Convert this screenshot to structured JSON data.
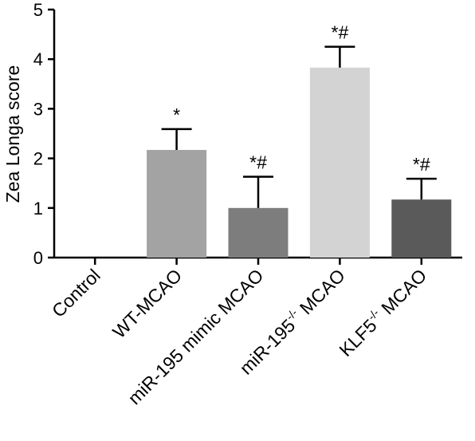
{
  "chart_data": {
    "type": "bar",
    "title": "",
    "ylabel": "Zea Longa score",
    "xlabel": "",
    "ylim": [
      0,
      5
    ],
    "yticks": [
      0,
      1,
      2,
      3,
      4,
      5
    ],
    "categories": [
      {
        "text": "Control",
        "sup": ""
      },
      {
        "text": "WT-MCAO",
        "sup": ""
      },
      {
        "text": "miR-195 mimic MCAO",
        "sup": ""
      },
      {
        "text": "miR-195",
        "sup": "-/-",
        "suffix": " MCAO"
      },
      {
        "text": "KLF5",
        "sup": "-/-",
        "suffix": " MCAO"
      }
    ],
    "values": [
      0,
      2.17,
      1.0,
      3.83,
      1.17
    ],
    "errors": [
      0,
      0.42,
      0.63,
      0.42,
      0.42
    ],
    "significance": [
      "",
      "*",
      "*#",
      "*#",
      "*#"
    ],
    "colors": [
      "#ffffff",
      "#a3a3a3",
      "#7d7d7d",
      "#d3d3d3",
      "#5a5a5a"
    ],
    "grid": false,
    "legend": "none"
  }
}
